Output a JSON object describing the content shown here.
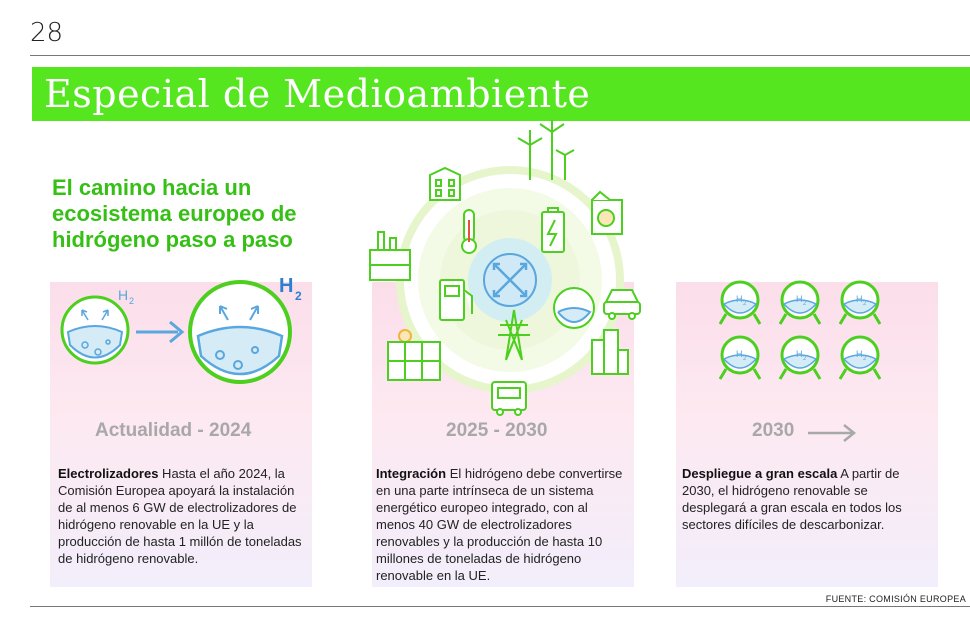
{
  "page_number": "28",
  "section_title": "Especial de Medioambiente",
  "headline": "El camino hacia un ecosistema europeo de hidrógeno paso a paso",
  "h2_label": "H",
  "h2_sub": "2",
  "stages": [
    {
      "period": "Actualidad - 2024",
      "bold": "Electrolizadores",
      "text": " Hasta el año 2024, la Comisión Europea apoyará la instalación de al menos 6 GW de electrolizadores de hidrógeno renovable en la UE y la producción de hasta 1 millón de toneladas de hidrógeno renovable."
    },
    {
      "period": "2025 - 2030",
      "bold": "Integración",
      "text": " El hidrógeno debe convertirse en una parte intrínseca de un sistema energético europeo integrado, con al menos 40 GW de electrolizadores renovables y la producción de hasta 10 millones de toneladas de hidrógeno renovable en la UE."
    },
    {
      "period": "2030",
      "bold": "Despliegue a gran escala",
      "text": " A partir de 2030, el hidrógeno renovable se desplegará a gran escala en todos los sectores difíciles de descarbonizar."
    }
  ],
  "source": "FUENTE: COMISIÓN EUROPEA",
  "icons": [
    "flask-h2-icon",
    "arrow-right-icon",
    "wind-turbines-icon",
    "building-icon",
    "factory-icon",
    "thermometer-icon",
    "battery-icon",
    "industrial-plant-icon",
    "fuel-pump-icon",
    "power-tower-icon",
    "car-icon",
    "solar-panel-icon",
    "truck-icon",
    "city-icon",
    "network-arrows-icon"
  ],
  "colors": {
    "brand_green": "#55e620",
    "headline_green": "#36c016",
    "icon_green": "#4ccf1f",
    "arrow_blue": "#5aa6de"
  }
}
